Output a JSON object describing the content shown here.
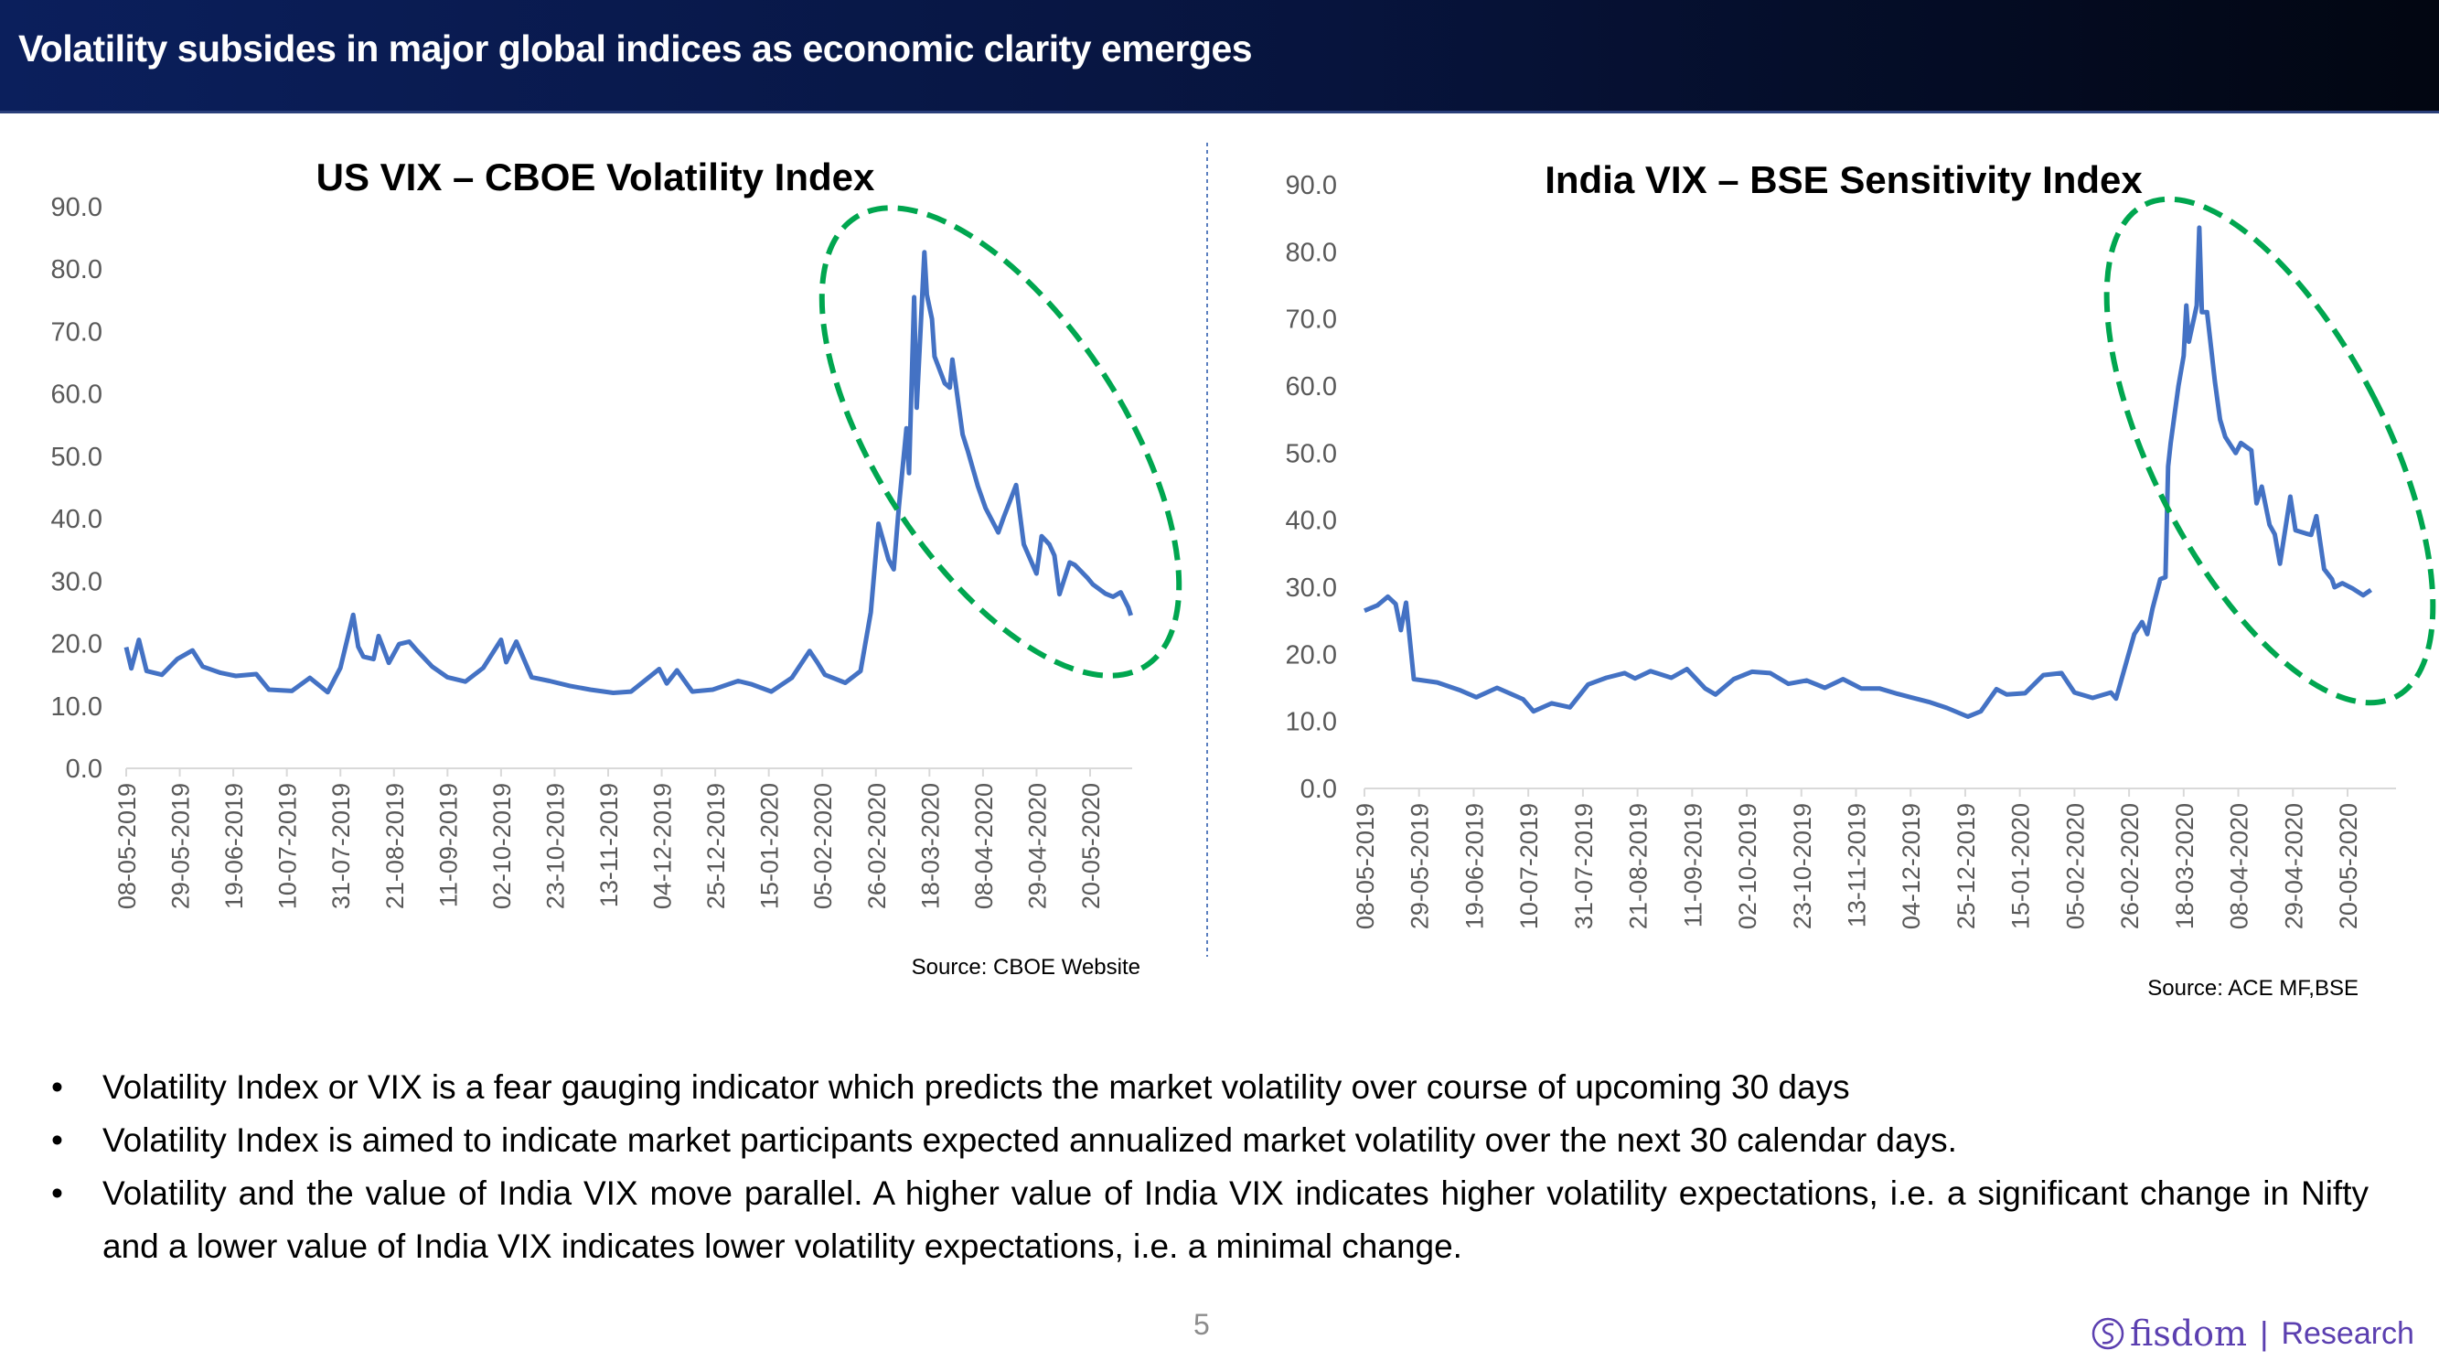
{
  "header": {
    "title": "Volatility subsides in major global indices as economic clarity emerges"
  },
  "colors": {
    "line": "#4472c4",
    "highlight": "#00a64f",
    "header_bg": "#07143d",
    "brand": "#5b3fb0"
  },
  "chart_data": [
    {
      "type": "line",
      "title": "US VIX – CBOE Volatility Index",
      "source": "Source: CBOE Website",
      "ylim": [
        0,
        90
      ],
      "yticks": [
        "0.0",
        "10.0",
        "20.0",
        "30.0",
        "40.0",
        "50.0",
        "60.0",
        "70.0",
        "80.0",
        "90.0"
      ],
      "xticks": [
        "08-05-2019",
        "29-05-2019",
        "19-06-2019",
        "10-07-2019",
        "31-07-2019",
        "21-08-2019",
        "11-09-2019",
        "02-10-2019",
        "23-10-2019",
        "13-11-2019",
        "04-12-2019",
        "25-12-2019",
        "15-01-2020",
        "05-02-2020",
        "26-02-2020",
        "18-03-2020",
        "08-04-2020",
        "29-04-2020",
        "20-05-2020"
      ],
      "grid": false,
      "highlight": "dashed green ellipse around Mar–Jun 2020 peak and decline",
      "series": [
        {
          "points": [
            [
              "2019-05-08",
              19.4
            ],
            [
              "2019-05-10",
              16.0
            ],
            [
              "2019-05-13",
              20.6
            ],
            [
              "2019-05-16",
              15.6
            ],
            [
              "2019-05-22",
              15.0
            ],
            [
              "2019-05-28",
              17.5
            ],
            [
              "2019-06-03",
              18.9
            ],
            [
              "2019-06-07",
              16.3
            ],
            [
              "2019-06-14",
              15.3
            ],
            [
              "2019-06-20",
              14.8
            ],
            [
              "2019-06-28",
              15.1
            ],
            [
              "2019-07-03",
              12.6
            ],
            [
              "2019-07-12",
              12.4
            ],
            [
              "2019-07-19",
              14.5
            ],
            [
              "2019-07-26",
              12.2
            ],
            [
              "2019-07-31",
              16.1
            ],
            [
              "2019-08-05",
              24.6
            ],
            [
              "2019-08-07",
              19.5
            ],
            [
              "2019-08-09",
              17.9
            ],
            [
              "2019-08-13",
              17.5
            ],
            [
              "2019-08-15",
              21.2
            ],
            [
              "2019-08-19",
              16.9
            ],
            [
              "2019-08-23",
              19.9
            ],
            [
              "2019-08-27",
              20.3
            ],
            [
              "2019-08-30",
              18.9
            ],
            [
              "2019-09-05",
              16.3
            ],
            [
              "2019-09-11",
              14.6
            ],
            [
              "2019-09-18",
              13.9
            ],
            [
              "2019-09-25",
              16.1
            ],
            [
              "2019-10-02",
              20.6
            ],
            [
              "2019-10-04",
              17.0
            ],
            [
              "2019-10-08",
              20.3
            ],
            [
              "2019-10-14",
              14.6
            ],
            [
              "2019-10-21",
              14.0
            ],
            [
              "2019-10-29",
              13.2
            ],
            [
              "2019-11-06",
              12.6
            ],
            [
              "2019-11-15",
              12.1
            ],
            [
              "2019-11-22",
              12.3
            ],
            [
              "2019-12-03",
              15.9
            ],
            [
              "2019-12-06",
              13.6
            ],
            [
              "2019-12-10",
              15.7
            ],
            [
              "2019-12-16",
              12.3
            ],
            [
              "2019-12-24",
              12.6
            ],
            [
              "2020-01-03",
              14.0
            ],
            [
              "2020-01-08",
              13.5
            ],
            [
              "2020-01-16",
              12.3
            ],
            [
              "2020-01-24",
              14.5
            ],
            [
              "2020-01-31",
              18.8
            ],
            [
              "2020-02-03",
              17.0
            ],
            [
              "2020-02-06",
              15.0
            ],
            [
              "2020-02-14",
              13.7
            ],
            [
              "2020-02-20",
              15.6
            ],
            [
              "2020-02-24",
              25.0
            ],
            [
              "2020-02-27",
              39.2
            ],
            [
              "2020-03-02",
              33.4
            ],
            [
              "2020-03-04",
              31.9
            ],
            [
              "2020-03-06",
              41.9
            ],
            [
              "2020-03-09",
              54.5
            ],
            [
              "2020-03-10",
              47.3
            ],
            [
              "2020-03-12",
              75.5
            ],
            [
              "2020-03-13",
              57.8
            ],
            [
              "2020-03-16",
              82.7
            ],
            [
              "2020-03-17",
              75.9
            ],
            [
              "2020-03-19",
              72.0
            ],
            [
              "2020-03-20",
              66.0
            ],
            [
              "2020-03-24",
              61.7
            ],
            [
              "2020-03-26",
              61.0
            ],
            [
              "2020-03-27",
              65.5
            ],
            [
              "2020-03-31",
              53.5
            ],
            [
              "2020-04-02",
              50.9
            ],
            [
              "2020-04-06",
              45.2
            ],
            [
              "2020-04-09",
              41.7
            ],
            [
              "2020-04-14",
              37.8
            ],
            [
              "2020-04-16",
              40.1
            ],
            [
              "2020-04-21",
              45.4
            ],
            [
              "2020-04-24",
              35.9
            ],
            [
              "2020-04-29",
              31.2
            ],
            [
              "2020-05-01",
              37.2
            ],
            [
              "2020-05-04",
              35.9
            ],
            [
              "2020-05-06",
              34.1
            ],
            [
              "2020-05-08",
              27.9
            ],
            [
              "2020-05-12",
              33.0
            ],
            [
              "2020-05-14",
              32.6
            ],
            [
              "2020-05-19",
              30.5
            ],
            [
              "2020-05-21",
              29.5
            ],
            [
              "2020-05-26",
              28.0
            ],
            [
              "2020-05-29",
              27.5
            ],
            [
              "2020-06-01",
              28.2
            ],
            [
              "2020-06-04",
              25.8
            ],
            [
              "2020-06-05",
              24.5
            ]
          ]
        }
      ]
    },
    {
      "type": "line",
      "title": "India VIX – BSE Sensitivity Index",
      "source": "Source: ACE MF,BSE",
      "ylim": [
        0,
        90
      ],
      "yticks": [
        "0.0",
        "10.0",
        "20.0",
        "30.0",
        "40.0",
        "50.0",
        "60.0",
        "70.0",
        "80.0",
        "90.0"
      ],
      "xticks": [
        "08-05-2019",
        "29-05-2019",
        "19-06-2019",
        "10-07-2019",
        "31-07-2019",
        "21-08-2019",
        "11-09-2019",
        "02-10-2019",
        "23-10-2019",
        "13-11-2019",
        "04-12-2019",
        "25-12-2019",
        "15-01-2020",
        "05-02-2020",
        "26-02-2020",
        "18-03-2020",
        "08-04-2020",
        "29-04-2020",
        "20-05-2020"
      ],
      "grid": false,
      "highlight": "dashed green ellipse around Mar–Jun 2020 peak and decline",
      "series": [
        {
          "points": [
            [
              "2019-05-08",
              26.5
            ],
            [
              "2019-05-13",
              27.3
            ],
            [
              "2019-05-17",
              28.6
            ],
            [
              "2019-05-20",
              27.5
            ],
            [
              "2019-05-22",
              23.6
            ],
            [
              "2019-05-24",
              27.7
            ],
            [
              "2019-05-27",
              16.3
            ],
            [
              "2019-06-05",
              15.8
            ],
            [
              "2019-06-14",
              14.6
            ],
            [
              "2019-06-20",
              13.6
            ],
            [
              "2019-06-28",
              15.0
            ],
            [
              "2019-07-08",
              13.3
            ],
            [
              "2019-07-12",
              11.5
            ],
            [
              "2019-07-19",
              12.7
            ],
            [
              "2019-07-26",
              12.1
            ],
            [
              "2019-08-02",
              15.5
            ],
            [
              "2019-08-09",
              16.5
            ],
            [
              "2019-08-16",
              17.2
            ],
            [
              "2019-08-20",
              16.4
            ],
            [
              "2019-08-26",
              17.5
            ],
            [
              "2019-09-03",
              16.5
            ],
            [
              "2019-09-09",
              17.8
            ],
            [
              "2019-09-16",
              14.9
            ],
            [
              "2019-09-20",
              14.0
            ],
            [
              "2019-09-27",
              16.3
            ],
            [
              "2019-10-04",
              17.4
            ],
            [
              "2019-10-11",
              17.2
            ],
            [
              "2019-10-18",
              15.6
            ],
            [
              "2019-10-25",
              16.1
            ],
            [
              "2019-11-01",
              15.0
            ],
            [
              "2019-11-08",
              16.3
            ],
            [
              "2019-11-15",
              14.9
            ],
            [
              "2019-11-22",
              14.9
            ],
            [
              "2019-11-29",
              14.1
            ],
            [
              "2019-12-04",
              13.6
            ],
            [
              "2019-12-11",
              12.9
            ],
            [
              "2019-12-18",
              12.0
            ],
            [
              "2019-12-26",
              10.7
            ],
            [
              "2019-12-31",
              11.5
            ],
            [
              "2020-01-06",
              14.8
            ],
            [
              "2020-01-10",
              14.0
            ],
            [
              "2020-01-17",
              14.2
            ],
            [
              "2020-01-24",
              16.9
            ],
            [
              "2020-01-31",
              17.2
            ],
            [
              "2020-02-05",
              14.3
            ],
            [
              "2020-02-12",
              13.5
            ],
            [
              "2020-02-19",
              14.3
            ],
            [
              "2020-02-21",
              13.4
            ],
            [
              "2020-02-28",
              23.0
            ],
            [
              "2020-03-02",
              24.8
            ],
            [
              "2020-03-04",
              23.0
            ],
            [
              "2020-03-06",
              26.8
            ],
            [
              "2020-03-09",
              31.2
            ],
            [
              "2020-03-11",
              31.5
            ],
            [
              "2020-03-12",
              48.0
            ],
            [
              "2020-03-13",
              51.5
            ],
            [
              "2020-03-16",
              60.0
            ],
            [
              "2020-03-18",
              64.5
            ],
            [
              "2020-03-19",
              72.0
            ],
            [
              "2020-03-20",
              66.6
            ],
            [
              "2020-03-23",
              72.0
            ],
            [
              "2020-03-24",
              83.6
            ],
            [
              "2020-03-25",
              71.0
            ],
            [
              "2020-03-27",
              71.0
            ],
            [
              "2020-03-30",
              60.6
            ],
            [
              "2020-04-01",
              55.0
            ],
            [
              "2020-04-03",
              52.4
            ],
            [
              "2020-04-07",
              50.0
            ],
            [
              "2020-04-09",
              51.5
            ],
            [
              "2020-04-13",
              50.4
            ],
            [
              "2020-04-15",
              42.5
            ],
            [
              "2020-04-17",
              45.0
            ],
            [
              "2020-04-20",
              39.3
            ],
            [
              "2020-04-22",
              37.9
            ],
            [
              "2020-04-24",
              33.5
            ],
            [
              "2020-04-28",
              43.5
            ],
            [
              "2020-04-30",
              38.5
            ],
            [
              "2020-05-04",
              38.0
            ],
            [
              "2020-05-06",
              37.8
            ],
            [
              "2020-05-08",
              40.6
            ],
            [
              "2020-05-11",
              32.7
            ],
            [
              "2020-05-14",
              31.2
            ],
            [
              "2020-05-15",
              30.0
            ],
            [
              "2020-05-18",
              30.6
            ],
            [
              "2020-05-22",
              29.8
            ],
            [
              "2020-05-26",
              28.8
            ],
            [
              "2020-05-29",
              29.6
            ]
          ]
        }
      ]
    }
  ],
  "bullets": [
    "Volatility Index or VIX is a fear gauging indicator which predicts the market volatility over course of upcoming 30 days",
    "Volatility Index is aimed to indicate market participants expected annualized market volatility over the next 30 calendar days.",
    "Volatility and the value of India VIX move parallel. A higher value of India VIX indicates higher volatility expectations, i.e. a significant change in Nifty and a lower value of India VIX indicates lower volatility expectations, i.e. a minimal change."
  ],
  "bullet_symbol": "•",
  "footer": {
    "page_number": "5",
    "brand": "fisdom",
    "separator": "|",
    "section": "Research"
  }
}
